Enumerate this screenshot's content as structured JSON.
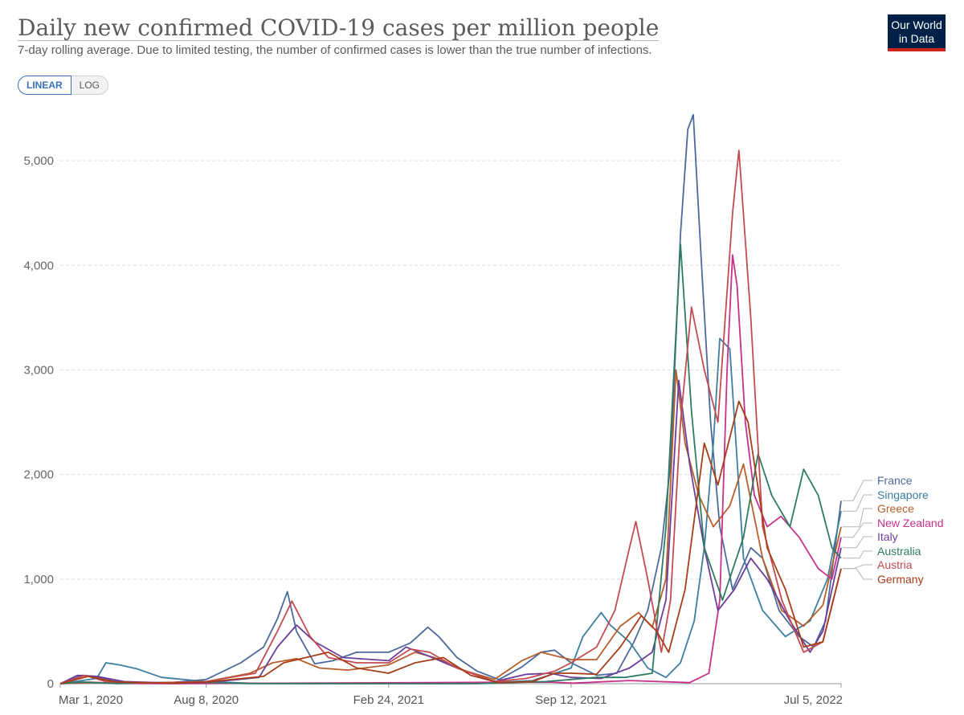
{
  "header": {
    "title": "Daily new confirmed COVID-19 cases per million people",
    "subtitle": "7-day rolling average. Due to limited testing, the number of confirmed cases is lower than the true number of infections.",
    "logo_line1": "Our World",
    "logo_line2": "in Data"
  },
  "scale_toggle": {
    "linear_label": "LINEAR",
    "log_label": "LOG",
    "selected": "LINEAR"
  },
  "chart_data": {
    "type": "line",
    "title": "Daily new confirmed COVID-19 cases per million people",
    "subtitle": "7-day rolling average. Due to limited testing, the number of confirmed cases is lower than the true number of infections.",
    "x_ticks": [
      "Mar 1, 2020",
      "Aug 8, 2020",
      "Feb 24, 2021",
      "Sep 12, 2021",
      "Jul 5, 2022"
    ],
    "y_ticks": [
      0,
      1000,
      2000,
      3000,
      4000,
      5000
    ],
    "y_tick_labels": [
      "0",
      "1,000",
      "2,000",
      "3,000",
      "4,000",
      "5,000"
    ],
    "xlim": [
      "2020-03-01",
      "2022-07-05"
    ],
    "ylim": [
      0,
      5500
    ],
    "grid": "horizontal dashed",
    "legend": "right, labels at line ends",
    "series": [
      {
        "name": "France",
        "color": "#4c6a9c",
        "points": [
          [
            "2020-03-01",
            0
          ],
          [
            "2020-03-25",
            80
          ],
          [
            "2020-04-08",
            70
          ],
          [
            "2020-04-28",
            25
          ],
          [
            "2020-05-20",
            10
          ],
          [
            "2020-07-01",
            10
          ],
          [
            "2020-08-08",
            40
          ],
          [
            "2020-09-15",
            200
          ],
          [
            "2020-10-10",
            350
          ],
          [
            "2020-10-25",
            620
          ],
          [
            "2020-11-05",
            880
          ],
          [
            "2020-11-15",
            500
          ],
          [
            "2020-12-05",
            190
          ],
          [
            "2020-12-25",
            220
          ],
          [
            "2021-01-20",
            300
          ],
          [
            "2021-02-24",
            300
          ],
          [
            "2021-03-20",
            390
          ],
          [
            "2021-04-08",
            540
          ],
          [
            "2021-04-20",
            450
          ],
          [
            "2021-05-10",
            250
          ],
          [
            "2021-06-01",
            120
          ],
          [
            "2021-06-25",
            40
          ],
          [
            "2021-07-20",
            160
          ],
          [
            "2021-08-10",
            300
          ],
          [
            "2021-08-25",
            320
          ],
          [
            "2021-09-12",
            200
          ],
          [
            "2021-10-10",
            80
          ],
          [
            "2021-11-01",
            100
          ],
          [
            "2021-11-20",
            400
          ],
          [
            "2021-12-05",
            700
          ],
          [
            "2021-12-20",
            1300
          ],
          [
            "2021-12-30",
            2100
          ],
          [
            "2022-01-10",
            4300
          ],
          [
            "2022-01-18",
            5300
          ],
          [
            "2022-01-24",
            5440
          ],
          [
            "2022-02-02",
            4000
          ],
          [
            "2022-02-12",
            2500
          ],
          [
            "2022-02-22",
            1500
          ],
          [
            "2022-03-08",
            900
          ],
          [
            "2022-03-28",
            1300
          ],
          [
            "2022-04-10",
            1200
          ],
          [
            "2022-04-28",
            700
          ],
          [
            "2022-05-20",
            450
          ],
          [
            "2022-06-05",
            350
          ],
          [
            "2022-06-18",
            600
          ],
          [
            "2022-07-05",
            1750
          ]
        ]
      },
      {
        "name": "Singapore",
        "color": "#3d7ea0",
        "points": [
          [
            "2020-03-01",
            0
          ],
          [
            "2020-04-10",
            50
          ],
          [
            "2020-04-20",
            200
          ],
          [
            "2020-05-05",
            180
          ],
          [
            "2020-05-25",
            140
          ],
          [
            "2020-06-20",
            60
          ],
          [
            "2020-08-08",
            20
          ],
          [
            "2020-10-01",
            2
          ],
          [
            "2021-04-01",
            2
          ],
          [
            "2021-06-01",
            3
          ],
          [
            "2021-08-01",
            30
          ],
          [
            "2021-09-12",
            150
          ],
          [
            "2021-09-25",
            450
          ],
          [
            "2021-10-15",
            680
          ],
          [
            "2021-10-25",
            560
          ],
          [
            "2021-11-15",
            400
          ],
          [
            "2021-12-05",
            150
          ],
          [
            "2021-12-25",
            60
          ],
          [
            "2022-01-10",
            200
          ],
          [
            "2022-01-25",
            600
          ],
          [
            "2022-02-05",
            1300
          ],
          [
            "2022-02-15",
            2300
          ],
          [
            "2022-02-22",
            3300
          ],
          [
            "2022-03-05",
            3200
          ],
          [
            "2022-03-20",
            1200
          ],
          [
            "2022-04-10",
            700
          ],
          [
            "2022-05-05",
            450
          ],
          [
            "2022-06-01",
            600
          ],
          [
            "2022-06-20",
            1000
          ],
          [
            "2022-07-05",
            1650
          ]
        ]
      },
      {
        "name": "Greece",
        "color": "#b55f2a",
        "points": [
          [
            "2020-03-01",
            0
          ],
          [
            "2020-04-10",
            10
          ],
          [
            "2020-06-01",
            5
          ],
          [
            "2020-08-08",
            20
          ],
          [
            "2020-09-25",
            100
          ],
          [
            "2020-10-20",
            200
          ],
          [
            "2020-11-15",
            240
          ],
          [
            "2020-12-10",
            150
          ],
          [
            "2021-01-10",
            130
          ],
          [
            "2021-02-24",
            180
          ],
          [
            "2021-03-25",
            300
          ],
          [
            "2021-04-15",
            250
          ],
          [
            "2021-05-20",
            120
          ],
          [
            "2021-06-20",
            40
          ],
          [
            "2021-07-20",
            220
          ],
          [
            "2021-08-10",
            300
          ],
          [
            "2021-09-12",
            230
          ],
          [
            "2021-10-10",
            230
          ],
          [
            "2021-11-05",
            550
          ],
          [
            "2021-11-25",
            680
          ],
          [
            "2021-12-10",
            540
          ],
          [
            "2021-12-25",
            1000
          ],
          [
            "2022-01-05",
            3000
          ],
          [
            "2022-01-15",
            2300
          ],
          [
            "2022-01-30",
            1800
          ],
          [
            "2022-02-15",
            1500
          ],
          [
            "2022-03-05",
            1700
          ],
          [
            "2022-03-20",
            2100
          ],
          [
            "2022-04-10",
            1200
          ],
          [
            "2022-05-01",
            700
          ],
          [
            "2022-05-25",
            550
          ],
          [
            "2022-06-15",
            750
          ],
          [
            "2022-07-05",
            1500
          ]
        ]
      },
      {
        "name": "New Zealand",
        "color": "#c7318d",
        "points": [
          [
            "2020-03-01",
            0
          ],
          [
            "2020-04-01",
            15
          ],
          [
            "2020-05-01",
            2
          ],
          [
            "2020-07-01",
            0
          ],
          [
            "2021-08-20",
            15
          ],
          [
            "2021-09-15",
            5
          ],
          [
            "2021-11-15",
            30
          ],
          [
            "2022-01-20",
            10
          ],
          [
            "2022-02-10",
            100
          ],
          [
            "2022-02-22",
            800
          ],
          [
            "2022-03-02",
            3000
          ],
          [
            "2022-03-08",
            4100
          ],
          [
            "2022-03-13",
            3800
          ],
          [
            "2022-03-22",
            2500
          ],
          [
            "2022-04-01",
            1800
          ],
          [
            "2022-04-15",
            1500
          ],
          [
            "2022-04-30",
            1600
          ],
          [
            "2022-05-20",
            1400
          ],
          [
            "2022-06-10",
            1100
          ],
          [
            "2022-06-25",
            1000
          ],
          [
            "2022-07-05",
            1400
          ]
        ]
      },
      {
        "name": "Italy",
        "color": "#6c3e9a",
        "points": [
          [
            "2020-03-01",
            0
          ],
          [
            "2020-03-20",
            80
          ],
          [
            "2020-04-10",
            70
          ],
          [
            "2020-05-10",
            20
          ],
          [
            "2020-07-01",
            5
          ],
          [
            "2020-08-08",
            10
          ],
          [
            "2020-10-05",
            60
          ],
          [
            "2020-10-25",
            350
          ],
          [
            "2020-11-15",
            560
          ],
          [
            "2020-12-05",
            400
          ],
          [
            "2021-01-05",
            250
          ],
          [
            "2021-02-24",
            220
          ],
          [
            "2021-03-15",
            350
          ],
          [
            "2021-04-10",
            260
          ],
          [
            "2021-05-10",
            150
          ],
          [
            "2021-06-20",
            20
          ],
          [
            "2021-07-25",
            90
          ],
          [
            "2021-08-20",
            100
          ],
          [
            "2021-09-12",
            60
          ],
          [
            "2021-10-15",
            50
          ],
          [
            "2021-11-15",
            150
          ],
          [
            "2021-12-10",
            300
          ],
          [
            "2021-12-25",
            800
          ],
          [
            "2022-01-08",
            2900
          ],
          [
            "2022-01-20",
            2100
          ],
          [
            "2022-02-05",
            1300
          ],
          [
            "2022-02-20",
            700
          ],
          [
            "2022-03-10",
            900
          ],
          [
            "2022-03-28",
            1200
          ],
          [
            "2022-04-15",
            1000
          ],
          [
            "2022-05-10",
            600
          ],
          [
            "2022-06-01",
            300
          ],
          [
            "2022-06-15",
            500
          ],
          [
            "2022-07-05",
            1300
          ]
        ]
      },
      {
        "name": "Australia",
        "color": "#2e7a62",
        "points": [
          [
            "2020-03-01",
            0
          ],
          [
            "2020-03-25",
            15
          ],
          [
            "2020-05-01",
            1
          ],
          [
            "2020-07-20",
            15
          ],
          [
            "2020-08-08",
            12
          ],
          [
            "2020-09-20",
            1
          ],
          [
            "2021-06-01",
            0
          ],
          [
            "2021-08-15",
            20
          ],
          [
            "2021-10-10",
            60
          ],
          [
            "2021-11-10",
            60
          ],
          [
            "2021-12-10",
            100
          ],
          [
            "2021-12-25",
            1500
          ],
          [
            "2022-01-10",
            4200
          ],
          [
            "2022-01-22",
            2600
          ],
          [
            "2022-02-05",
            1300
          ],
          [
            "2022-02-25",
            800
          ],
          [
            "2022-03-20",
            1400
          ],
          [
            "2022-04-05",
            2200
          ],
          [
            "2022-04-20",
            1800
          ],
          [
            "2022-05-10",
            1500
          ],
          [
            "2022-05-25",
            2050
          ],
          [
            "2022-06-10",
            1800
          ],
          [
            "2022-06-25",
            1300
          ],
          [
            "2022-07-05",
            1200
          ]
        ]
      },
      {
        "name": "Austria",
        "color": "#c44b52",
        "points": [
          [
            "2020-03-01",
            0
          ],
          [
            "2020-03-28",
            80
          ],
          [
            "2020-04-20",
            20
          ],
          [
            "2020-06-01",
            5
          ],
          [
            "2020-08-08",
            20
          ],
          [
            "2020-10-01",
            100
          ],
          [
            "2020-10-25",
            500
          ],
          [
            "2020-11-10",
            790
          ],
          [
            "2020-11-30",
            450
          ],
          [
            "2020-12-20",
            250
          ],
          [
            "2021-01-20",
            200
          ],
          [
            "2021-02-24",
            200
          ],
          [
            "2021-03-20",
            330
          ],
          [
            "2021-04-10",
            300
          ],
          [
            "2021-05-10",
            150
          ],
          [
            "2021-06-20",
            20
          ],
          [
            "2021-07-25",
            50
          ],
          [
            "2021-08-25",
            120
          ],
          [
            "2021-09-12",
            200
          ],
          [
            "2021-10-10",
            350
          ],
          [
            "2021-10-30",
            700
          ],
          [
            "2021-11-15",
            1300
          ],
          [
            "2021-11-22",
            1550
          ],
          [
            "2021-12-05",
            1000
          ],
          [
            "2021-12-20",
            300
          ],
          [
            "2021-12-30",
            800
          ],
          [
            "2022-01-10",
            2500
          ],
          [
            "2022-01-22",
            3600
          ],
          [
            "2022-02-05",
            3000
          ],
          [
            "2022-02-20",
            2500
          ],
          [
            "2022-03-08",
            4500
          ],
          [
            "2022-03-15",
            5100
          ],
          [
            "2022-03-28",
            3500
          ],
          [
            "2022-04-10",
            1500
          ],
          [
            "2022-05-01",
            800
          ],
          [
            "2022-05-25",
            300
          ],
          [
            "2022-06-15",
            400
          ],
          [
            "2022-07-05",
            1100
          ]
        ]
      },
      {
        "name": "Germany",
        "color": "#a63d18",
        "points": [
          [
            "2020-03-01",
            0
          ],
          [
            "2020-04-01",
            70
          ],
          [
            "2020-05-01",
            15
          ],
          [
            "2020-07-01",
            5
          ],
          [
            "2020-08-08",
            15
          ],
          [
            "2020-10-10",
            70
          ],
          [
            "2020-11-01",
            200
          ],
          [
            "2020-12-20",
            300
          ],
          [
            "2021-01-20",
            150
          ],
          [
            "2021-02-24",
            100
          ],
          [
            "2021-03-25",
            200
          ],
          [
            "2021-04-25",
            250
          ],
          [
            "2021-05-25",
            80
          ],
          [
            "2021-06-25",
            10
          ],
          [
            "2021-08-01",
            20
          ],
          [
            "2021-08-25",
            100
          ],
          [
            "2021-09-12",
            100
          ],
          [
            "2021-10-10",
            90
          ],
          [
            "2021-11-05",
            350
          ],
          [
            "2021-11-28",
            650
          ],
          [
            "2021-12-15",
            500
          ],
          [
            "2021-12-28",
            300
          ],
          [
            "2022-01-15",
            900
          ],
          [
            "2022-02-05",
            2300
          ],
          [
            "2022-02-20",
            1900
          ],
          [
            "2022-03-15",
            2700
          ],
          [
            "2022-03-25",
            2500
          ],
          [
            "2022-04-15",
            1300
          ],
          [
            "2022-05-05",
            900
          ],
          [
            "2022-05-25",
            350
          ],
          [
            "2022-06-15",
            400
          ],
          [
            "2022-07-05",
            1100
          ]
        ]
      }
    ]
  }
}
